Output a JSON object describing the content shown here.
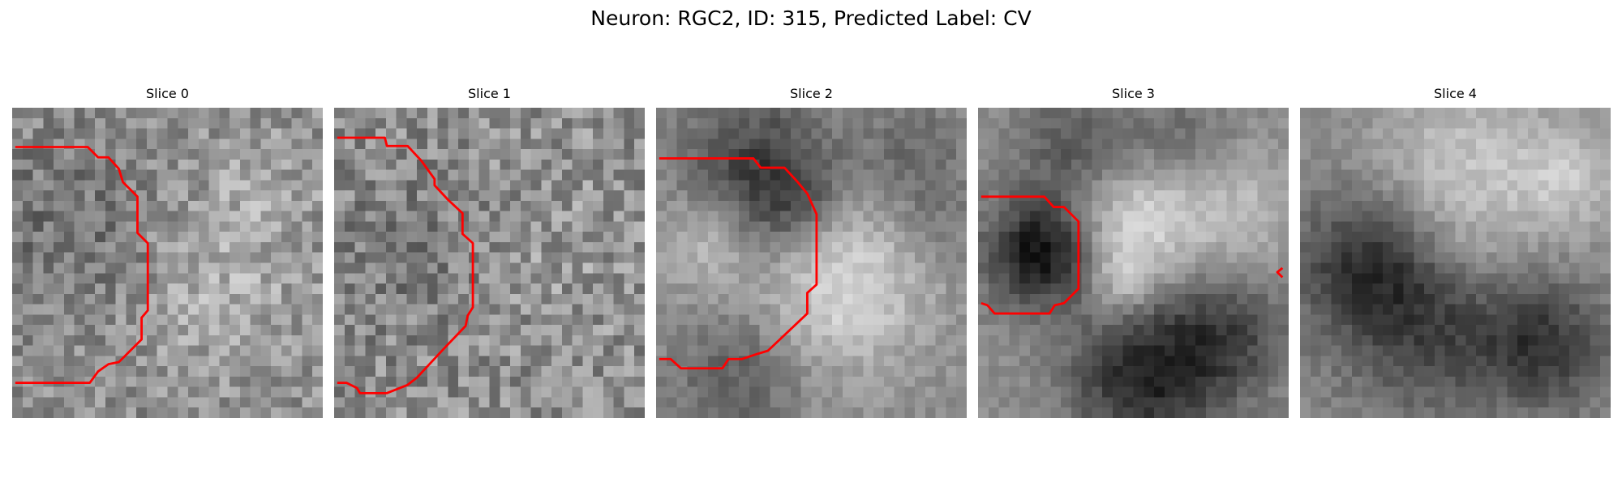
{
  "figure": {
    "title": "Neuron: RGC2, ID: 315, Predicted Label: CV"
  },
  "panels": [
    {
      "title": "Slice 0",
      "contour_color": "#ff0000"
    },
    {
      "title": "Slice 1",
      "contour_color": "#ff0000"
    },
    {
      "title": "Slice 2",
      "contour_color": "#ff0000"
    },
    {
      "title": "Slice 3",
      "contour_color": "#ff0000"
    },
    {
      "title": "Slice 4",
      "contour_color": "#ff0000"
    }
  ],
  "colormap": "gray"
}
